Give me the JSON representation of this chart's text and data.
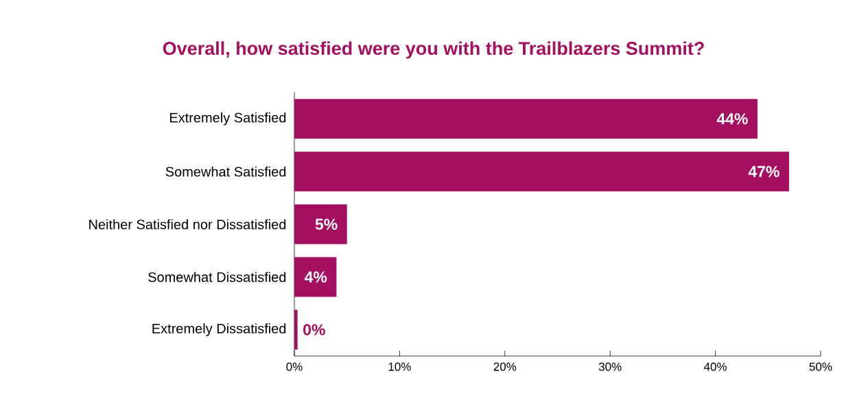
{
  "chart_data": {
    "type": "bar",
    "orientation": "horizontal",
    "title": "Overall, how satisfied were you with the Trailblazers Summit?",
    "categories": [
      "Extremely Satisfied",
      "Somewhat Satisfied",
      "Neither Satisfied nor Dissatisfied",
      "Somewhat Dissatisfied",
      "Extremely Dissatisfied"
    ],
    "values": [
      44,
      47,
      5,
      4,
      0.3
    ],
    "value_labels": [
      "44%",
      "47%",
      "5%",
      "4%",
      "0%"
    ],
    "color": "#a50f60",
    "xlim": [
      0,
      50
    ],
    "xticks": [
      {
        "value": 0,
        "label": "0%"
      },
      {
        "value": 10,
        "label": "10%"
      },
      {
        "value": 20,
        "label": "20%"
      },
      {
        "value": 30,
        "label": "30%"
      },
      {
        "value": 40,
        "label": "40%"
      },
      {
        "value": 50,
        "label": "50%"
      }
    ],
    "grid": false
  }
}
